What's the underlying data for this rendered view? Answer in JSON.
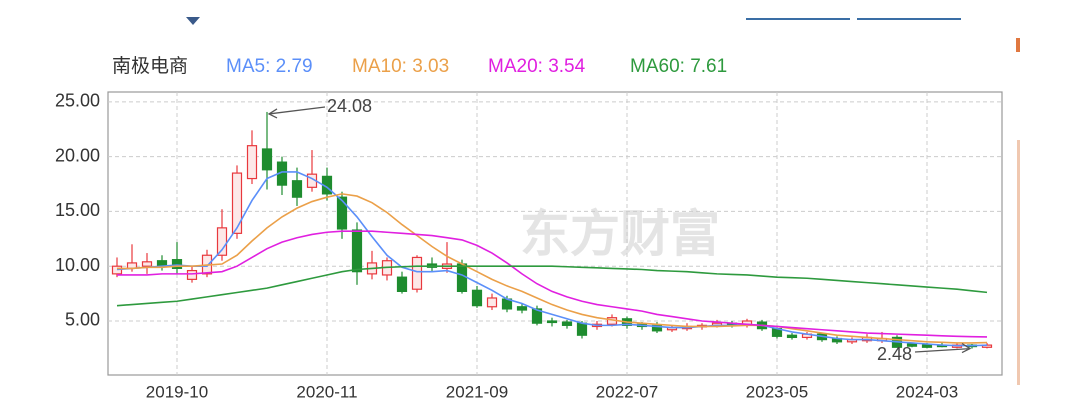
{
  "chart_data": {
    "type": "candlestick",
    "title": "南极电商",
    "watermark": "东方财富",
    "categories": [
      null,
      null,
      null,
      null,
      "2019-10",
      null,
      null,
      null,
      null,
      null,
      null,
      null,
      null,
      null,
      "2020-11",
      null,
      null,
      null,
      null,
      null,
      null,
      null,
      null,
      null,
      "2021-09",
      null,
      null,
      null,
      null,
      null,
      null,
      null,
      null,
      null,
      "2022-07",
      null,
      null,
      null,
      null,
      null,
      null,
      null,
      null,
      null,
      "2023-05",
      null,
      null,
      null,
      null,
      null,
      null,
      null,
      null,
      null,
      "2024-03",
      null,
      null,
      null,
      null
    ],
    "open": [
      9.3,
      9.8,
      10,
      10.5,
      10.6,
      8.8,
      9.3,
      11,
      13,
      18,
      20.7,
      19.5,
      17.8,
      17.2,
      18.2,
      16.3,
      13.3,
      9.3,
      9.2,
      9,
      7.9,
      10.2,
      9.8,
      10.2,
      7.8,
      6.3,
      7,
      6.3,
      6.1,
      5,
      4.9,
      4.8,
      4.5,
      4.7,
      5.2,
      4.7,
      4.6,
      4.2,
      4.3,
      4.5,
      4.6,
      4.8,
      4.6,
      4.9,
      4.3,
      3.7,
      3.5,
      3.8,
      3.4,
      3.1,
      3.2,
      3.2,
      3.5,
      2.9,
      2.8,
      2.8,
      2.6,
      2.8,
      2.6
    ],
    "high": [
      10.8,
      12,
      11.2,
      11,
      12.2,
      10,
      11.5,
      15.2,
      19.2,
      22.4,
      24.08,
      20,
      19,
      20.6,
      19,
      16.8,
      14,
      11.4,
      10.8,
      9.5,
      11,
      10.8,
      12.2,
      10.6,
      8.2,
      7.5,
      7.3,
      6.6,
      6.4,
      5.3,
      5.1,
      5,
      5,
      5.6,
      5.4,
      4.9,
      4.9,
      4.6,
      4.8,
      4.8,
      5.1,
      5,
      5.2,
      5.1,
      4.4,
      3.9,
      4,
      3.9,
      3.6,
      3.5,
      3.8,
      4,
      3.7,
      3,
      3,
      3,
      3,
      2.9,
      3
    ],
    "low": [
      9,
      9.5,
      9.3,
      9.6,
      9.3,
      8.5,
      9,
      10.5,
      12.5,
      17.5,
      17,
      16.5,
      15.5,
      16.8,
      16,
      12.5,
      8.3,
      8.8,
      8.7,
      7.5,
      7.6,
      9.5,
      9.4,
      7.5,
      6.2,
      6,
      5.8,
      5.7,
      4.6,
      4.5,
      4.3,
      3.4,
      4.2,
      4.5,
      4.3,
      4.2,
      3.9,
      4,
      4.1,
      4.2,
      4.4,
      4.4,
      4.4,
      4.1,
      3.4,
      3.3,
      3.3,
      3.1,
      2.9,
      2.9,
      3,
      3,
      2.6,
      2.6,
      2.5,
      2.6,
      2.5,
      2.48,
      2.5
    ],
    "close": [
      10,
      10.3,
      10.4,
      10,
      9.8,
      9.6,
      11,
      13.5,
      18.5,
      21,
      18.8,
      17.4,
      16.3,
      18.4,
      16.6,
      13.4,
      9.5,
      10.3,
      10.5,
      7.7,
      10.8,
      9.9,
      10.2,
      7.7,
      6.4,
      7.1,
      6.1,
      6,
      4.8,
      4.9,
      4.6,
      3.7,
      4.7,
      5.3,
      4.6,
      4.5,
      4.1,
      4.4,
      4.5,
      4.6,
      4.8,
      4.7,
      5,
      4.3,
      3.6,
      3.5,
      3.8,
      3.3,
      3.1,
      3.3,
      3.5,
      3.4,
      2.6,
      2.7,
      2.6,
      2.7,
      2.8,
      2.7,
      2.8
    ],
    "up_color": "#e8383d",
    "down_color": "#1e8c2f",
    "series": [
      {
        "name": "MA5: 2.79",
        "color": "#5b8ff9",
        "values": [
          9.7,
          9.8,
          9.9,
          10,
          10.1,
          10,
          10,
          11.5,
          13.5,
          16,
          18,
          18.6,
          18.6,
          18,
          17.2,
          16,
          14.5,
          12.7,
          11,
          9.9,
          9.5,
          9.5,
          9.6,
          9.2,
          8.5,
          7.8,
          7,
          6.6,
          6,
          5.6,
          5.2,
          4.8,
          4.6,
          4.6,
          4.7,
          4.6,
          4.5,
          4.4,
          4.4,
          4.5,
          4.6,
          4.6,
          4.7,
          4.6,
          4.3,
          4,
          3.8,
          3.6,
          3.4,
          3.3,
          3.3,
          3.2,
          3.1,
          3,
          2.9,
          2.8,
          2.75,
          2.75,
          2.79
        ]
      },
      {
        "name": "MA10: 3.03",
        "color": "#eba049",
        "values": [
          9.8,
          9.8,
          9.9,
          9.9,
          10,
          10,
          10.1,
          10.2,
          11,
          12.3,
          13.5,
          14.5,
          15.3,
          15.9,
          16.3,
          16.6,
          16.4,
          15.8,
          14.9,
          13.8,
          12.8,
          11.8,
          10.9,
          10.2,
          9.5,
          8.8,
          8.2,
          7.7,
          7.1,
          6.5,
          6,
          5.6,
          5.3,
          5.1,
          4.9,
          4.8,
          4.7,
          4.6,
          4.5,
          4.5,
          4.5,
          4.55,
          4.6,
          4.6,
          4.5,
          4.3,
          4.1,
          3.9,
          3.7,
          3.6,
          3.5,
          3.4,
          3.3,
          3.2,
          3.1,
          3.05,
          3,
          3,
          3.03
        ]
      },
      {
        "name": "MA20: 3.54",
        "color": "#e020e0",
        "values": [
          9.2,
          9.2,
          9.2,
          9.3,
          9.3,
          9.3,
          9.4,
          9.5,
          10,
          10.8,
          11.6,
          12.2,
          12.6,
          12.9,
          13.1,
          13.2,
          13.2,
          13.2,
          13.1,
          13,
          12.9,
          12.8,
          12.6,
          12.4,
          11.9,
          11.2,
          10.3,
          9.3,
          8.4,
          7.7,
          7.2,
          6.8,
          6.5,
          6.3,
          6.1,
          5.9,
          5.6,
          5.4,
          5.2,
          5,
          4.9,
          4.8,
          4.7,
          4.6,
          4.5,
          4.4,
          4.3,
          4.2,
          4.1,
          4,
          3.9,
          3.85,
          3.8,
          3.75,
          3.7,
          3.65,
          3.6,
          3.57,
          3.54
        ]
      },
      {
        "name": "MA60: 7.61",
        "color": "#2e9a3e",
        "values": [
          6.4,
          6.5,
          6.6,
          6.7,
          6.8,
          7,
          7.2,
          7.4,
          7.6,
          7.8,
          8,
          8.3,
          8.6,
          8.9,
          9.2,
          9.5,
          9.7,
          9.8,
          9.9,
          9.95,
          10,
          10,
          10,
          10,
          10,
          10,
          10,
          10,
          10,
          10,
          9.95,
          9.9,
          9.85,
          9.8,
          9.75,
          9.7,
          9.6,
          9.55,
          9.5,
          9.4,
          9.3,
          9.25,
          9.2,
          9.1,
          9,
          8.95,
          8.9,
          8.8,
          8.7,
          8.6,
          8.5,
          8.4,
          8.3,
          8.2,
          8.1,
          8,
          7.9,
          7.75,
          7.61
        ]
      }
    ],
    "ylim": [
      0.07,
      25.9
    ],
    "yticks": [
      {
        "value": 5,
        "label": "5.00"
      },
      {
        "value": 10,
        "label": "10.00"
      },
      {
        "value": 15,
        "label": "15.00"
      },
      {
        "value": 20,
        "label": "20.00"
      },
      {
        "value": 25,
        "label": "25.00"
      }
    ],
    "grid": true
  }
}
